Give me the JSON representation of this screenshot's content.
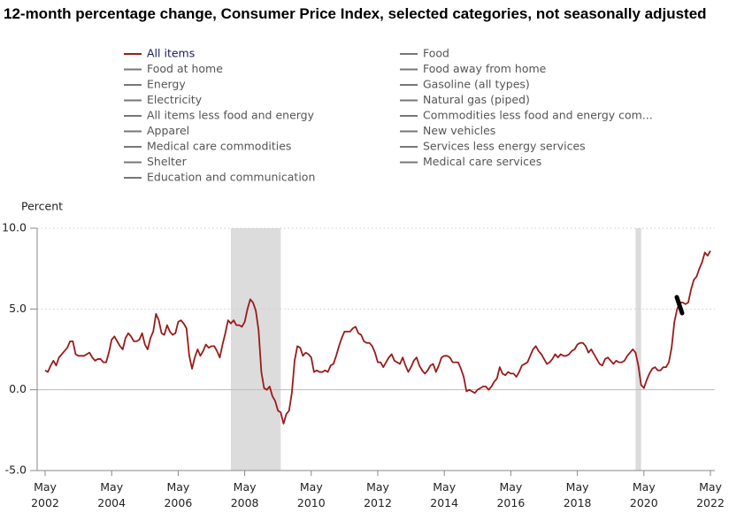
{
  "chart_data": {
    "type": "line",
    "title": "12-month percentage change, Consumer Price Index, selected categories, not seasonally adjusted",
    "y_label": "Percent",
    "x": [
      "2002-05",
      "2002-06",
      "2002-07",
      "2002-08",
      "2002-09",
      "2002-10",
      "2002-11",
      "2002-12",
      "2003-01",
      "2003-02",
      "2003-03",
      "2003-04",
      "2003-05",
      "2003-06",
      "2003-07",
      "2003-08",
      "2003-09",
      "2003-10",
      "2003-11",
      "2003-12",
      "2004-01",
      "2004-02",
      "2004-03",
      "2004-04",
      "2004-05",
      "2004-06",
      "2004-07",
      "2004-08",
      "2004-09",
      "2004-10",
      "2004-11",
      "2004-12",
      "2005-01",
      "2005-02",
      "2005-03",
      "2005-04",
      "2005-05",
      "2005-06",
      "2005-07",
      "2005-08",
      "2005-09",
      "2005-10",
      "2005-11",
      "2005-12",
      "2006-01",
      "2006-02",
      "2006-03",
      "2006-04",
      "2006-05",
      "2006-06",
      "2006-07",
      "2006-08",
      "2006-09",
      "2006-10",
      "2006-11",
      "2006-12",
      "2007-01",
      "2007-02",
      "2007-03",
      "2007-04",
      "2007-05",
      "2007-06",
      "2007-07",
      "2007-08",
      "2007-09",
      "2007-10",
      "2007-11",
      "2007-12",
      "2008-01",
      "2008-02",
      "2008-03",
      "2008-04",
      "2008-05",
      "2008-06",
      "2008-07",
      "2008-08",
      "2008-09",
      "2008-10",
      "2008-11",
      "2008-12",
      "2009-01",
      "2009-02",
      "2009-03",
      "2009-04",
      "2009-05",
      "2009-06",
      "2009-07",
      "2009-08",
      "2009-09",
      "2009-10",
      "2009-11",
      "2009-12",
      "2010-01",
      "2010-02",
      "2010-03",
      "2010-04",
      "2010-05",
      "2010-06",
      "2010-07",
      "2010-08",
      "2010-09",
      "2010-10",
      "2010-11",
      "2010-12",
      "2011-01",
      "2011-02",
      "2011-03",
      "2011-04",
      "2011-05",
      "2011-06",
      "2011-07",
      "2011-08",
      "2011-09",
      "2011-10",
      "2011-11",
      "2011-12",
      "2012-01",
      "2012-02",
      "2012-03",
      "2012-04",
      "2012-05",
      "2012-06",
      "2012-07",
      "2012-08",
      "2012-09",
      "2012-10",
      "2012-11",
      "2012-12",
      "2013-01",
      "2013-02",
      "2013-03",
      "2013-04",
      "2013-05",
      "2013-06",
      "2013-07",
      "2013-08",
      "2013-09",
      "2013-10",
      "2013-11",
      "2013-12",
      "2014-01",
      "2014-02",
      "2014-03",
      "2014-04",
      "2014-05",
      "2014-06",
      "2014-07",
      "2014-08",
      "2014-09",
      "2014-10",
      "2014-11",
      "2014-12",
      "2015-01",
      "2015-02",
      "2015-03",
      "2015-04",
      "2015-05",
      "2015-06",
      "2015-07",
      "2015-08",
      "2015-09",
      "2015-10",
      "2015-11",
      "2015-12",
      "2016-01",
      "2016-02",
      "2016-03",
      "2016-04",
      "2016-05",
      "2016-06",
      "2016-07",
      "2016-08",
      "2016-09",
      "2016-10",
      "2016-11",
      "2016-12",
      "2017-01",
      "2017-02",
      "2017-03",
      "2017-04",
      "2017-05",
      "2017-06",
      "2017-07",
      "2017-08",
      "2017-09",
      "2017-10",
      "2017-11",
      "2017-12",
      "2018-01",
      "2018-02",
      "2018-03",
      "2018-04",
      "2018-05",
      "2018-06",
      "2018-07",
      "2018-08",
      "2018-09",
      "2018-10",
      "2018-11",
      "2018-12",
      "2019-01",
      "2019-02",
      "2019-03",
      "2019-04",
      "2019-05",
      "2019-06",
      "2019-07",
      "2019-08",
      "2019-09",
      "2019-10",
      "2019-11",
      "2019-12",
      "2020-01",
      "2020-02",
      "2020-03",
      "2020-04",
      "2020-05",
      "2020-06",
      "2020-07",
      "2020-08",
      "2020-09",
      "2020-10",
      "2020-11",
      "2020-12",
      "2021-01",
      "2021-02",
      "2021-03",
      "2021-04",
      "2021-05",
      "2021-06",
      "2021-07",
      "2021-08",
      "2021-09",
      "2021-10",
      "2021-11",
      "2021-12",
      "2022-01",
      "2022-02",
      "2022-03",
      "2022-04",
      "2022-05"
    ],
    "series": [
      {
        "name": "All items",
        "color": "#9a1b1b",
        "visible": true,
        "values": [
          1.2,
          1.1,
          1.5,
          1.8,
          1.5,
          2.0,
          2.2,
          2.4,
          2.6,
          3.0,
          3.0,
          2.2,
          2.1,
          2.1,
          2.1,
          2.2,
          2.3,
          2.0,
          1.8,
          1.9,
          1.9,
          1.7,
          1.7,
          2.3,
          3.1,
          3.3,
          3.0,
          2.7,
          2.5,
          3.2,
          3.5,
          3.3,
          3.0,
          3.0,
          3.1,
          3.5,
          2.8,
          2.5,
          3.2,
          3.6,
          4.7,
          4.3,
          3.5,
          3.4,
          4.0,
          3.6,
          3.4,
          3.5,
          4.2,
          4.3,
          4.1,
          3.8,
          2.1,
          1.3,
          2.0,
          2.5,
          2.1,
          2.4,
          2.8,
          2.6,
          2.7,
          2.7,
          2.4,
          2.0,
          2.8,
          3.5,
          4.3,
          4.1,
          4.3,
          4.0,
          4.0,
          3.9,
          4.2,
          5.0,
          5.6,
          5.4,
          4.9,
          3.7,
          1.1,
          0.1,
          0.0,
          0.2,
          -0.4,
          -0.7,
          -1.3,
          -1.4,
          -2.1,
          -1.5,
          -1.3,
          -0.2,
          1.8,
          2.7,
          2.6,
          2.1,
          2.3,
          2.2,
          2.0,
          1.1,
          1.2,
          1.1,
          1.1,
          1.2,
          1.1,
          1.5,
          1.6,
          2.1,
          2.7,
          3.2,
          3.6,
          3.6,
          3.6,
          3.8,
          3.9,
          3.5,
          3.4,
          3.0,
          2.9,
          2.9,
          2.7,
          2.3,
          1.7,
          1.7,
          1.4,
          1.7,
          2.0,
          2.2,
          1.8,
          1.7,
          1.6,
          2.0,
          1.5,
          1.1,
          1.4,
          1.8,
          2.0,
          1.5,
          1.2,
          1.0,
          1.2,
          1.5,
          1.6,
          1.1,
          1.5,
          2.0,
          2.1,
          2.1,
          2.0,
          1.7,
          1.7,
          1.7,
          1.3,
          0.8,
          -0.1,
          0.0,
          -0.1,
          -0.2,
          0.0,
          0.1,
          0.2,
          0.2,
          0.0,
          0.2,
          0.5,
          0.7,
          1.4,
          1.0,
          0.9,
          1.1,
          1.0,
          1.0,
          0.8,
          1.1,
          1.5,
          1.6,
          1.7,
          2.1,
          2.5,
          2.7,
          2.4,
          2.2,
          1.9,
          1.6,
          1.7,
          1.9,
          2.2,
          2.0,
          2.2,
          2.1,
          2.1,
          2.2,
          2.4,
          2.5,
          2.8,
          2.9,
          2.9,
          2.7,
          2.3,
          2.5,
          2.2,
          1.9,
          1.6,
          1.5,
          1.9,
          2.0,
          1.8,
          1.6,
          1.8,
          1.7,
          1.7,
          1.8,
          2.1,
          2.3,
          2.5,
          2.3,
          1.5,
          0.3,
          0.1,
          0.6,
          1.0,
          1.3,
          1.4,
          1.2,
          1.2,
          1.4,
          1.4,
          1.7,
          2.6,
          4.2,
          5.0,
          5.4,
          5.4,
          5.3,
          5.4,
          6.2,
          6.8,
          7.0,
          7.5,
          7.9,
          8.5,
          8.3,
          8.6
        ]
      },
      {
        "name": "Food",
        "color": "#777777",
        "visible": false
      },
      {
        "name": "Food at home",
        "color": "#777777",
        "visible": false
      },
      {
        "name": "Food away from home",
        "color": "#777777",
        "visible": false
      },
      {
        "name": "Energy",
        "color": "#777777",
        "visible": false
      },
      {
        "name": "Gasoline (all types)",
        "color": "#777777",
        "visible": false
      },
      {
        "name": "Electricity",
        "color": "#777777",
        "visible": false
      },
      {
        "name": "Natural gas (piped)",
        "color": "#777777",
        "visible": false
      },
      {
        "name": "All items less food and energy",
        "color": "#777777",
        "visible": false
      },
      {
        "name": "Commodities less food and energy com...",
        "color": "#777777",
        "visible": false
      },
      {
        "name": "Apparel",
        "color": "#777777",
        "visible": false
      },
      {
        "name": "New vehicles",
        "color": "#777777",
        "visible": false
      },
      {
        "name": "Medical care commodities",
        "color": "#777777",
        "visible": false
      },
      {
        "name": "Services less energy services",
        "color": "#777777",
        "visible": false
      },
      {
        "name": "Shelter",
        "color": "#777777",
        "visible": false
      },
      {
        "name": "Medical care services",
        "color": "#777777",
        "visible": false
      },
      {
        "name": "Education and communication",
        "color": "#777777",
        "visible": false
      }
    ],
    "shaded_regions": [
      [
        "2007-12",
        "2009-06"
      ],
      [
        "2020-02",
        "2020-04"
      ]
    ],
    "shade_color": "#dcdcdc",
    "xlim": [
      "2002-05",
      "2022-05"
    ],
    "xticks": [
      {
        "value": "2002-05",
        "label": "May 2002"
      },
      {
        "value": "2004-05",
        "label": "May 2004"
      },
      {
        "value": "2006-05",
        "label": "May 2006"
      },
      {
        "value": "2008-05",
        "label": "May 2008"
      },
      {
        "value": "2010-05",
        "label": "May 2010"
      },
      {
        "value": "2012-05",
        "label": "May 2012"
      },
      {
        "value": "2014-05",
        "label": "May 2014"
      },
      {
        "value": "2016-05",
        "label": "May 2016"
      },
      {
        "value": "2018-05",
        "label": "May 2018"
      },
      {
        "value": "2020-05",
        "label": "May 2020"
      },
      {
        "value": "2022-05",
        "label": "May 2022"
      }
    ],
    "ylim": [
      -5,
      10
    ],
    "yticks": [
      {
        "value": -5,
        "label": "-5.0"
      },
      {
        "value": 0,
        "label": "0.0"
      },
      {
        "value": 5,
        "label": "5.0"
      },
      {
        "value": 10,
        "label": "10.0"
      }
    ],
    "grid": true
  }
}
